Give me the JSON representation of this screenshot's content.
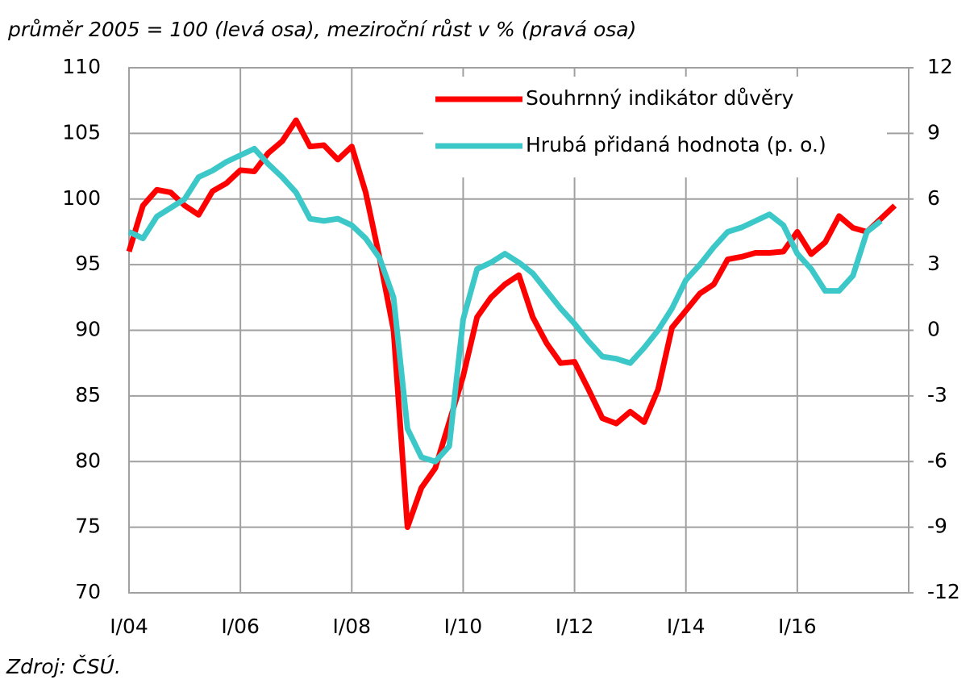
{
  "chart_data": {
    "type": "line",
    "title": "průměr 2005 = 100 (levá osa), meziroční růst v % (pravá osa)",
    "source": "Zdroj: ČSÚ.",
    "categories": [
      "I/04",
      null,
      null,
      null,
      null,
      null,
      null,
      null,
      "I/06",
      null,
      null,
      null,
      null,
      null,
      null,
      null,
      "I/08",
      null,
      null,
      null,
      null,
      null,
      null,
      null,
      "I/10",
      null,
      null,
      null,
      null,
      null,
      null,
      null,
      "I/12",
      null,
      null,
      null,
      null,
      null,
      null,
      null,
      "I/14",
      null,
      null,
      null,
      null,
      null,
      null,
      null,
      "I/16",
      null,
      null,
      null,
      null,
      null,
      null,
      null
    ],
    "series": [
      {
        "name": "Souhrnný indikátor důvěry",
        "color": "#ff0000",
        "axis": "y",
        "values": [
          96,
          99.5,
          100.7,
          100.5,
          99.5,
          98.8,
          100.6,
          101.2,
          102.2,
          102.1,
          103.5,
          104.4,
          106,
          104,
          104.1,
          103,
          104,
          100.5,
          95.5,
          90,
          75,
          78,
          79.5,
          83,
          86.5,
          91,
          92.5,
          93.5,
          94.2,
          91,
          89,
          87.5,
          87.6,
          85.5,
          83.3,
          82.9,
          83.8,
          83,
          85.5,
          90.2,
          91.5,
          92.8,
          93.5,
          95.4,
          95.6,
          95.9,
          95.9,
          96,
          97.5,
          95.8,
          96.7,
          98.7,
          97.8,
          97.5,
          98.5,
          99.5
        ]
      },
      {
        "name": "Hrubá přidaná hodnota (p. o.)",
        "color": "#3cc8c8",
        "axis": "y2",
        "values": [
          4.5,
          4.2,
          5.2,
          5.6,
          6,
          7,
          7.3,
          7.7,
          8,
          8.3,
          7.6,
          7,
          6.3,
          5.1,
          5,
          5.1,
          4.8,
          4.2,
          3.3,
          1.5,
          -4.5,
          -5.8,
          -6,
          -5.3,
          0.5,
          2.8,
          3.1,
          3.5,
          3.1,
          2.6,
          1.8,
          1,
          0.3,
          -0.5,
          -1.2,
          -1.3,
          -1.5,
          -0.8,
          0,
          1,
          2.3,
          3,
          3.8,
          4.5,
          4.7,
          5,
          5.3,
          4.8,
          3.5,
          2.8,
          1.8,
          1.8,
          2.5,
          4.5,
          5,
          null
        ]
      }
    ],
    "ylim": [
      70,
      110
    ],
    "yticks": [
      70,
      75,
      80,
      85,
      90,
      95,
      100,
      105,
      110
    ],
    "y2lim": [
      -12,
      12
    ],
    "y2ticks": [
      -12,
      -9,
      -6,
      -3,
      0,
      3,
      6,
      9,
      12
    ],
    "grid": true,
    "legend": "top-right"
  }
}
